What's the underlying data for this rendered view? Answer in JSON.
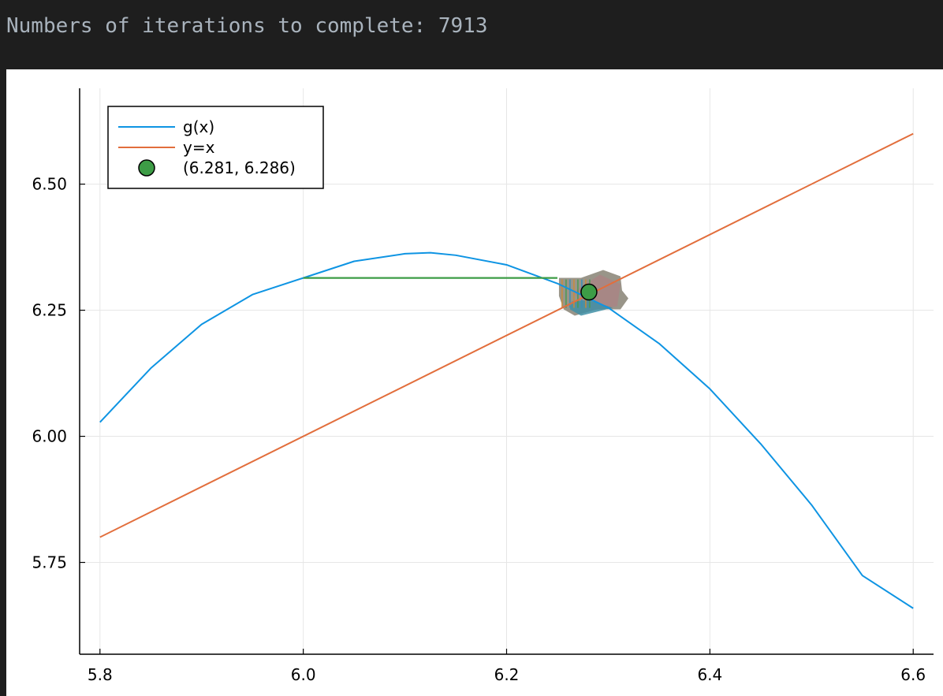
{
  "console": {
    "text": "Numbers of iterations to complete: 7913"
  },
  "colors": {
    "gx": "#0e94e3",
    "yx": "#e26e3c",
    "point": "#3d9c46",
    "cobweb": "#3d9c46",
    "grid": "#e6e6e6",
    "axis": "#000000"
  },
  "chart_data": {
    "type": "line",
    "title": "",
    "xlabel": "",
    "ylabel": "",
    "xlim": [
      5.78,
      6.62
    ],
    "ylim": [
      5.568,
      6.69
    ],
    "xticks": [
      5.8,
      6.0,
      6.2,
      6.4,
      6.6
    ],
    "xtick_labels": [
      "5.8",
      "6.0",
      "6.2",
      "6.4",
      "6.6"
    ],
    "yticks": [
      5.75,
      6.0,
      6.25,
      6.5
    ],
    "ytick_labels": [
      "5.75",
      "6.00",
      "6.25",
      "6.50"
    ],
    "grid": true,
    "legend_position": "top-left",
    "series": [
      {
        "name": "g(x)",
        "kind": "line",
        "x": [
          5.8,
          5.85,
          5.9,
          5.95,
          6.0,
          6.05,
          6.1,
          6.125,
          6.15,
          6.2,
          6.25,
          6.3,
          6.35,
          6.4,
          6.45,
          6.5,
          6.55,
          6.6
        ],
        "y": [
          6.028,
          6.135,
          6.222,
          6.281,
          6.314,
          6.347,
          6.362,
          6.364,
          6.359,
          6.34,
          6.303,
          6.255,
          6.184,
          6.094,
          5.985,
          5.864,
          5.724,
          5.659
        ]
      },
      {
        "name": "y=x",
        "kind": "line",
        "x": [
          5.8,
          6.6
        ],
        "y": [
          5.8,
          6.6
        ]
      },
      {
        "name": "(6.281, 6.286)",
        "kind": "scatter",
        "x": [
          6.281
        ],
        "y": [
          6.286
        ]
      },
      {
        "name": "",
        "kind": "cobweb",
        "x": [
          6.0,
          6.25
        ],
        "y": [
          6.314,
          6.314
        ]
      }
    ]
  }
}
